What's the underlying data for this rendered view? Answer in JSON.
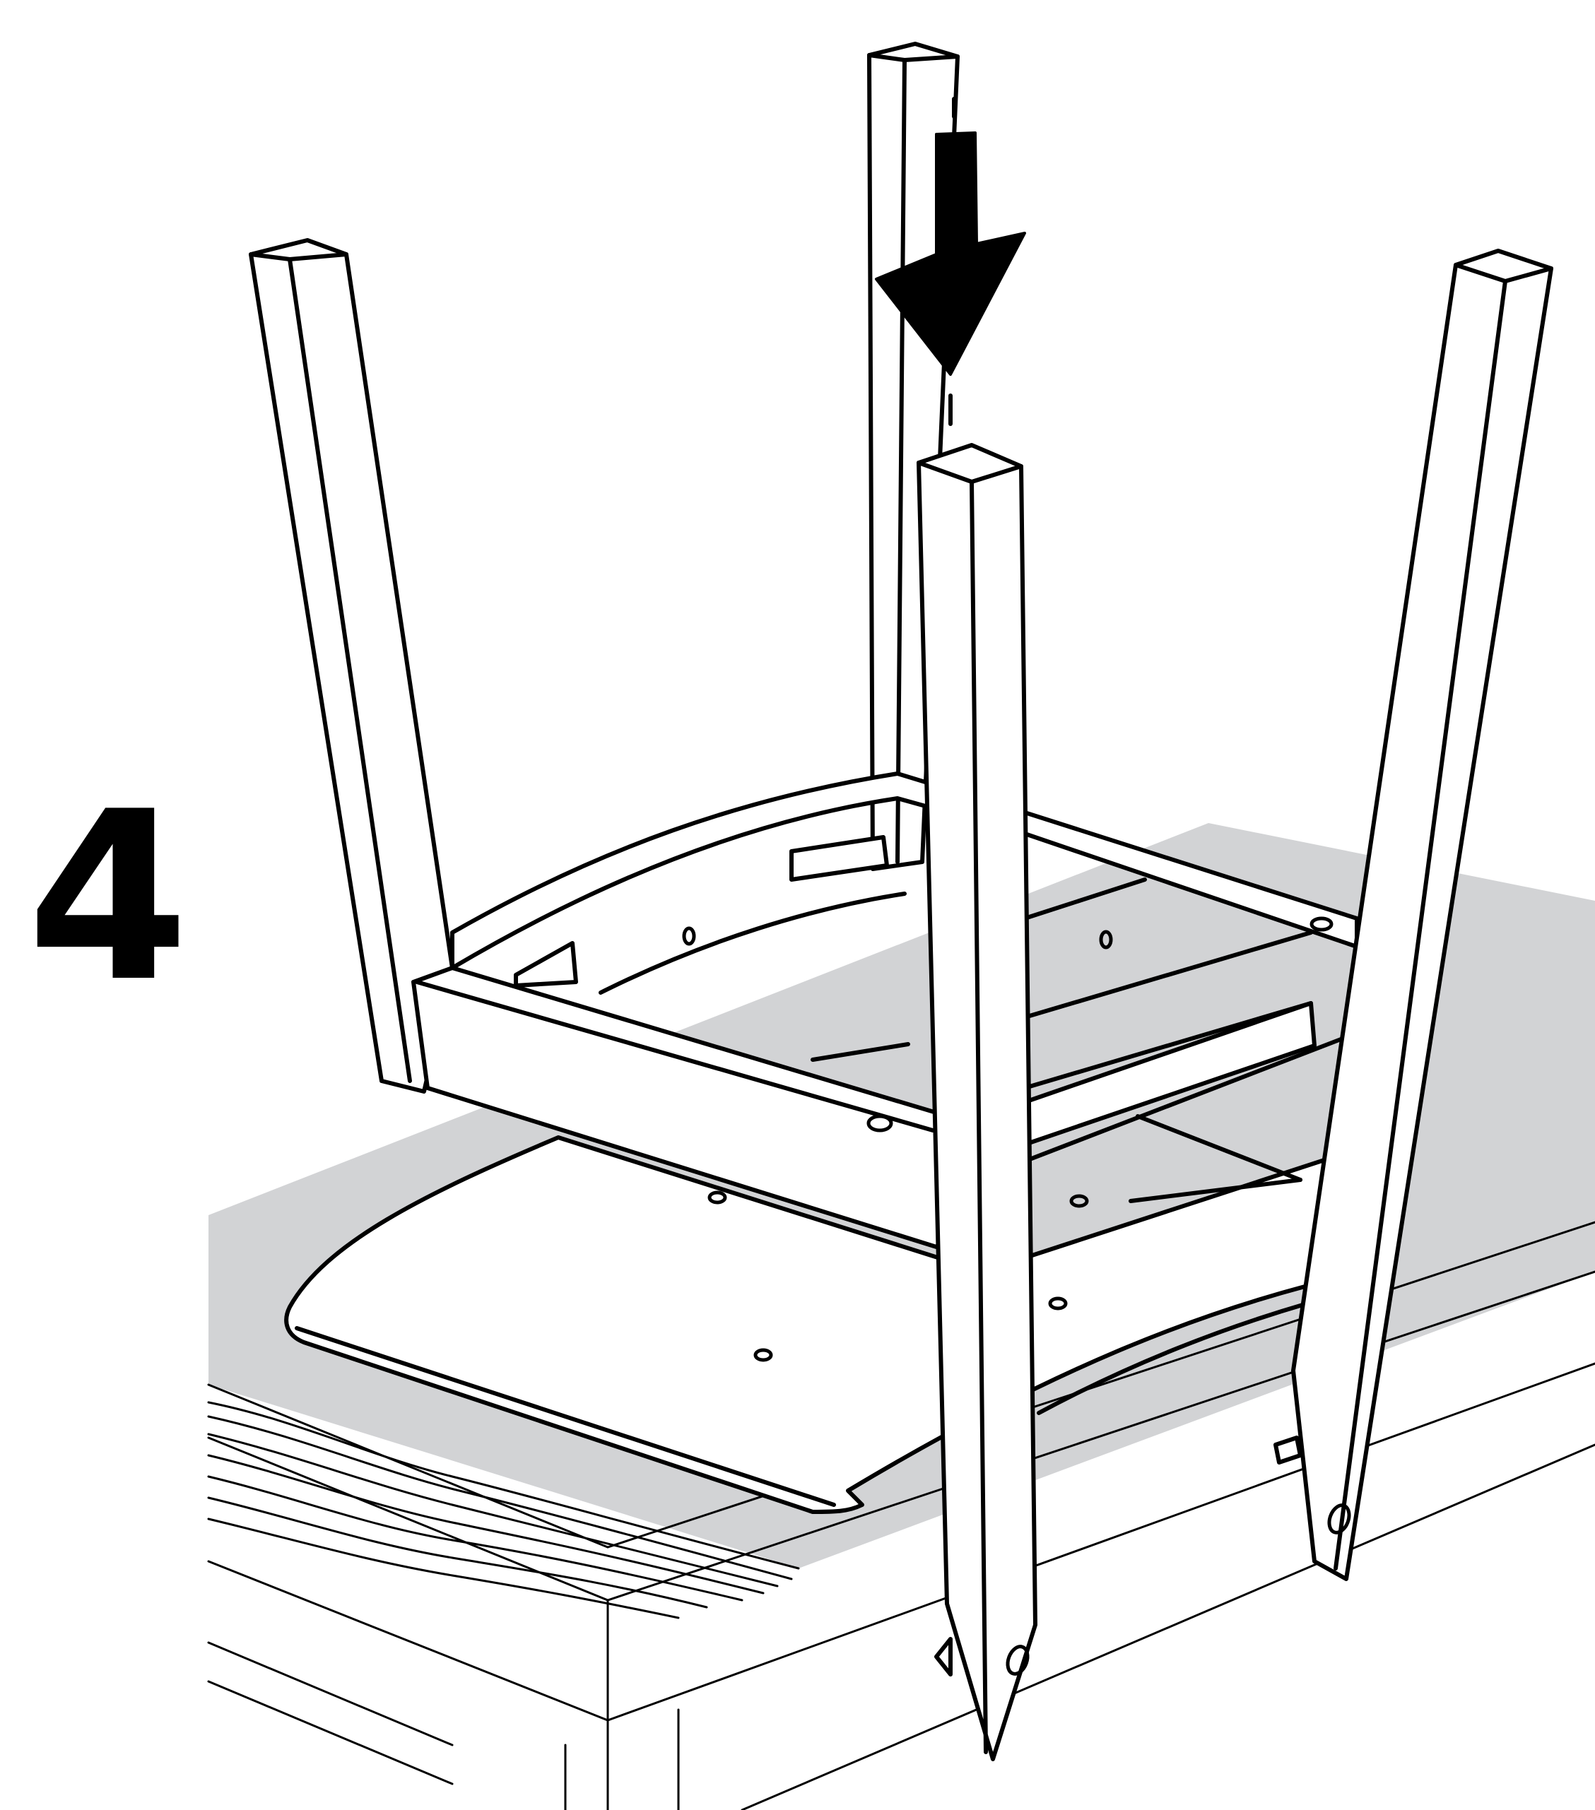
{
  "step": {
    "number": "4"
  },
  "colors": {
    "line": "#000000",
    "background": "#ffffff",
    "work_surface": "#d2d3d5"
  },
  "icons": {
    "direction": "arrow-down-icon"
  }
}
